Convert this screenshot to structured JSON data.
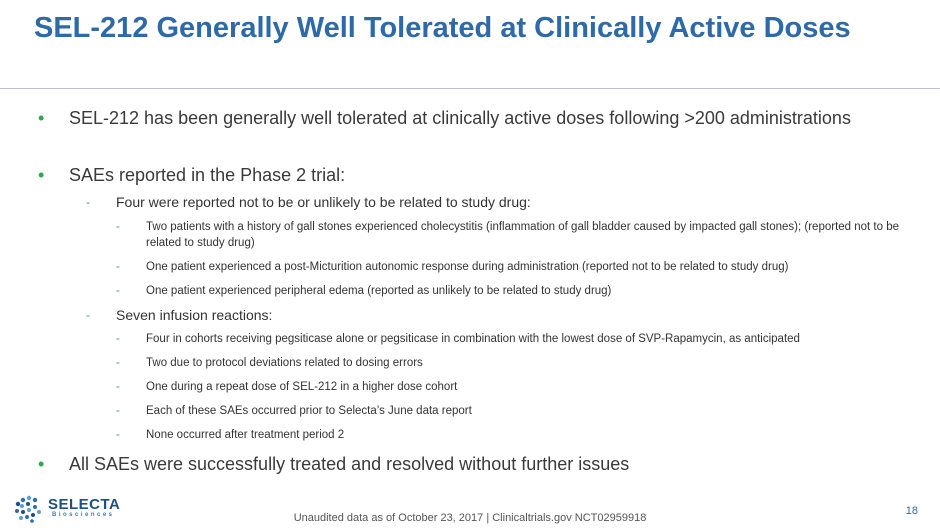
{
  "title": "SEL-212 Generally Well Tolerated at Clinically Active Doses",
  "bullets": {
    "b1": "SEL-212 has been generally well tolerated at clinically active doses following >200 administrations",
    "b2": "SAEs reported in the Phase 2 trial:",
    "b2_1": "Four were reported not to be or unlikely to be related to study drug:",
    "b2_1_items": [
      "Two patients with a history of gall stones experienced cholecystitis (inflammation of gall bladder caused by impacted gall stones); (reported not to be related to study drug)",
      "One patient experienced a post-Micturition autonomic response during administration (reported not to be related to study drug)",
      "One patient experienced peripheral edema (reported as unlikely to be related to study drug)"
    ],
    "b2_2": "Seven infusion reactions:",
    "b2_2_items": [
      "Four in cohorts receiving pegsiticase alone or pegsiticase in combination with the lowest dose of SVP-Rapamycin, as anticipated",
      "Two due to protocol deviations related to dosing errors",
      "One during a repeat dose of SEL-212 in a higher dose cohort",
      "Each of these SAEs occurred prior to Selecta’s June data report",
      "None occurred after treatment period 2"
    ],
    "b3": "All SAEs were successfully treated and resolved without further issues"
  },
  "markers": {
    "level1": "•",
    "level2": "-",
    "level3": "-"
  },
  "footer": "Unaudited data as of October 23, 2017 | Clinicaltrials.gov NCT02959918",
  "page_number": "18",
  "logo": {
    "wordmark": "SELECTA",
    "subtitle": "Biosciences"
  },
  "colors": {
    "title": "#2e6aa8",
    "bullet": "#2fa84f",
    "logo_dark": "#1f4f86",
    "logo_light": "#5aa0d8"
  }
}
